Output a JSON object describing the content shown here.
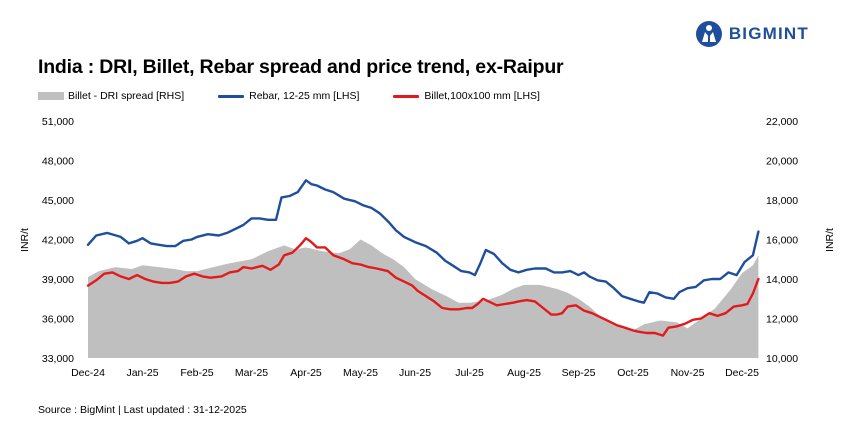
{
  "header": {
    "title": "India : DRI, Billet, Rebar spread and price trend, ex-Raipur",
    "logo_text": "BIGMINT",
    "logo_icon": "bigmint-logo-icon"
  },
  "footer": {
    "source": "Source : BigMint | Last updated : 31-12-2025"
  },
  "colors": {
    "spread": "#bfbfbf",
    "rebar": "#1f4f9c",
    "billet": "#e31a1c",
    "brand": "#1f4f9c"
  },
  "chart_data": {
    "type": "line",
    "title": "India : DRI, Billet, Rebar spread and price trend, ex-Raipur",
    "ylabel": "INR/t",
    "y2label": "INR/t",
    "ylim": [
      33000,
      51000
    ],
    "y2lim": [
      10000,
      22000
    ],
    "yticks": [
      "33,000",
      "36,000",
      "39,000",
      "42,000",
      "45,000",
      "48,000",
      "51,000"
    ],
    "y2ticks": [
      "10,000",
      "12,000",
      "14,000",
      "16,000",
      "18,000",
      "20,000",
      "22,000"
    ],
    "xticks": [
      "Dec-24",
      "Jan-25",
      "Feb-25",
      "Mar-25",
      "Apr-25",
      "May-25",
      "Jun-25",
      "Jul-25",
      "Aug-25",
      "Sep-25",
      "Oct-25",
      "Nov-25",
      "Dec-25"
    ],
    "legend_position": "top",
    "x_index": "months since Dec-24 (0 = Dec-24, 12 = Dec-25)",
    "series": [
      {
        "name": "Billet - DRI spread  [RHS]",
        "type": "area",
        "axis": "right",
        "points": [
          [
            0,
            14100
          ],
          [
            0.2,
            14400
          ],
          [
            0.5,
            14600
          ],
          [
            0.8,
            14500
          ],
          [
            1.0,
            14700
          ],
          [
            1.3,
            14600
          ],
          [
            1.6,
            14500
          ],
          [
            1.8,
            14400
          ],
          [
            2.0,
            14400
          ],
          [
            2.3,
            14600
          ],
          [
            2.6,
            14800
          ],
          [
            2.8,
            14900
          ],
          [
            3.0,
            15000
          ],
          [
            3.3,
            15400
          ],
          [
            3.6,
            15700
          ],
          [
            3.8,
            15500
          ],
          [
            4.0,
            15600
          ],
          [
            4.3,
            15400
          ],
          [
            4.6,
            15300
          ],
          [
            4.8,
            15500
          ],
          [
            5.0,
            16000
          ],
          [
            5.2,
            15700
          ],
          [
            5.4,
            15300
          ],
          [
            5.6,
            15000
          ],
          [
            5.8,
            14600
          ],
          [
            6.0,
            14000
          ],
          [
            6.3,
            13500
          ],
          [
            6.6,
            13100
          ],
          [
            6.8,
            12800
          ],
          [
            7.0,
            12800
          ],
          [
            7.3,
            12900
          ],
          [
            7.6,
            13200
          ],
          [
            7.8,
            13500
          ],
          [
            8.0,
            13700
          ],
          [
            8.3,
            13700
          ],
          [
            8.6,
            13500
          ],
          [
            8.8,
            13300
          ],
          [
            9.0,
            13000
          ],
          [
            9.2,
            12600
          ],
          [
            9.4,
            12100
          ],
          [
            9.6,
            11800
          ],
          [
            9.8,
            11500
          ],
          [
            10.0,
            11400
          ],
          [
            10.2,
            11700
          ],
          [
            10.5,
            11900
          ],
          [
            10.8,
            11800
          ],
          [
            11.0,
            11500
          ],
          [
            11.2,
            11900
          ],
          [
            11.5,
            12500
          ],
          [
            11.8,
            13500
          ],
          [
            12.0,
            14300
          ],
          [
            12.2,
            14700
          ],
          [
            12.3,
            15200
          ]
        ]
      },
      {
        "name": "Rebar, 12-25 mm [LHS]",
        "type": "line",
        "axis": "left",
        "points": [
          [
            0,
            41600
          ],
          [
            0.15,
            42300
          ],
          [
            0.35,
            42500
          ],
          [
            0.6,
            42200
          ],
          [
            0.75,
            41700
          ],
          [
            0.9,
            41900
          ],
          [
            1.0,
            42100
          ],
          [
            1.15,
            41700
          ],
          [
            1.3,
            41600
          ],
          [
            1.45,
            41500
          ],
          [
            1.6,
            41500
          ],
          [
            1.75,
            41900
          ],
          [
            1.9,
            42000
          ],
          [
            2.0,
            42200
          ],
          [
            2.2,
            42400
          ],
          [
            2.4,
            42300
          ],
          [
            2.55,
            42500
          ],
          [
            2.7,
            42800
          ],
          [
            2.85,
            43100
          ],
          [
            3.0,
            43600
          ],
          [
            3.15,
            43600
          ],
          [
            3.3,
            43500
          ],
          [
            3.45,
            43500
          ],
          [
            3.55,
            45200
          ],
          [
            3.7,
            45300
          ],
          [
            3.85,
            45600
          ],
          [
            3.95,
            46200
          ],
          [
            4.0,
            46500
          ],
          [
            4.1,
            46200
          ],
          [
            4.2,
            46100
          ],
          [
            4.35,
            45800
          ],
          [
            4.5,
            45600
          ],
          [
            4.7,
            45100
          ],
          [
            4.9,
            44900
          ],
          [
            5.05,
            44600
          ],
          [
            5.2,
            44400
          ],
          [
            5.35,
            44000
          ],
          [
            5.5,
            43400
          ],
          [
            5.65,
            42700
          ],
          [
            5.8,
            42200
          ],
          [
            6.0,
            41800
          ],
          [
            6.2,
            41500
          ],
          [
            6.4,
            41000
          ],
          [
            6.55,
            40400
          ],
          [
            6.7,
            40000
          ],
          [
            6.85,
            39600
          ],
          [
            7.0,
            39500
          ],
          [
            7.1,
            39300
          ],
          [
            7.2,
            40200
          ],
          [
            7.3,
            41200
          ],
          [
            7.45,
            40900
          ],
          [
            7.6,
            40200
          ],
          [
            7.75,
            39700
          ],
          [
            7.9,
            39500
          ],
          [
            8.05,
            39700
          ],
          [
            8.2,
            39800
          ],
          [
            8.4,
            39800
          ],
          [
            8.55,
            39500
          ],
          [
            8.7,
            39500
          ],
          [
            8.85,
            39600
          ],
          [
            9.0,
            39300
          ],
          [
            9.1,
            39500
          ],
          [
            9.2,
            39200
          ],
          [
            9.35,
            38900
          ],
          [
            9.5,
            38800
          ],
          [
            9.65,
            38300
          ],
          [
            9.8,
            37700
          ],
          [
            9.95,
            37500
          ],
          [
            10.1,
            37300
          ],
          [
            10.2,
            37200
          ],
          [
            10.3,
            38000
          ],
          [
            10.45,
            37900
          ],
          [
            10.6,
            37600
          ],
          [
            10.75,
            37500
          ],
          [
            10.85,
            38000
          ],
          [
            11.0,
            38300
          ],
          [
            11.15,
            38400
          ],
          [
            11.3,
            38900
          ],
          [
            11.45,
            39000
          ],
          [
            11.6,
            39000
          ],
          [
            11.75,
            39500
          ],
          [
            11.9,
            39300
          ],
          [
            12.05,
            40300
          ],
          [
            12.2,
            40800
          ],
          [
            12.3,
            42600
          ]
        ]
      },
      {
        "name": "Billet,100x100 mm [LHS]",
        "type": "line",
        "axis": "left",
        "points": [
          [
            0,
            38500
          ],
          [
            0.15,
            38900
          ],
          [
            0.3,
            39400
          ],
          [
            0.45,
            39500
          ],
          [
            0.6,
            39200
          ],
          [
            0.75,
            39000
          ],
          [
            0.9,
            39300
          ],
          [
            1.05,
            39000
          ],
          [
            1.2,
            38800
          ],
          [
            1.35,
            38700
          ],
          [
            1.5,
            38700
          ],
          [
            1.65,
            38800
          ],
          [
            1.8,
            39200
          ],
          [
            1.95,
            39400
          ],
          [
            2.1,
            39200
          ],
          [
            2.25,
            39100
          ],
          [
            2.45,
            39200
          ],
          [
            2.6,
            39500
          ],
          [
            2.75,
            39600
          ],
          [
            2.85,
            39900
          ],
          [
            3.0,
            39800
          ],
          [
            3.1,
            39900
          ],
          [
            3.2,
            40000
          ],
          [
            3.35,
            39700
          ],
          [
            3.5,
            40100
          ],
          [
            3.6,
            40800
          ],
          [
            3.75,
            41000
          ],
          [
            3.9,
            41600
          ],
          [
            4.0,
            42100
          ],
          [
            4.1,
            41800
          ],
          [
            4.2,
            41400
          ],
          [
            4.35,
            41400
          ],
          [
            4.5,
            40800
          ],
          [
            4.7,
            40500
          ],
          [
            4.85,
            40200
          ],
          [
            5.0,
            40100
          ],
          [
            5.15,
            39900
          ],
          [
            5.3,
            39800
          ],
          [
            5.5,
            39600
          ],
          [
            5.65,
            39100
          ],
          [
            5.8,
            38800
          ],
          [
            5.95,
            38500
          ],
          [
            6.05,
            38100
          ],
          [
            6.2,
            37700
          ],
          [
            6.35,
            37300
          ],
          [
            6.5,
            36800
          ],
          [
            6.65,
            36700
          ],
          [
            6.8,
            36700
          ],
          [
            6.95,
            36800
          ],
          [
            7.05,
            36800
          ],
          [
            7.15,
            37100
          ],
          [
            7.25,
            37500
          ],
          [
            7.35,
            37300
          ],
          [
            7.5,
            37000
          ],
          [
            7.65,
            37100
          ],
          [
            7.8,
            37200
          ],
          [
            7.9,
            37300
          ],
          [
            8.05,
            37400
          ],
          [
            8.2,
            37300
          ],
          [
            8.35,
            36800
          ],
          [
            8.5,
            36300
          ],
          [
            8.6,
            36300
          ],
          [
            8.7,
            36400
          ],
          [
            8.8,
            36900
          ],
          [
            8.95,
            37000
          ],
          [
            9.1,
            36600
          ],
          [
            9.25,
            36400
          ],
          [
            9.4,
            36100
          ],
          [
            9.55,
            35800
          ],
          [
            9.7,
            35500
          ],
          [
            9.85,
            35300
          ],
          [
            10.0,
            35100
          ],
          [
            10.1,
            35000
          ],
          [
            10.25,
            34900
          ],
          [
            10.4,
            34900
          ],
          [
            10.55,
            34700
          ],
          [
            10.65,
            35300
          ],
          [
            10.8,
            35400
          ],
          [
            10.95,
            35600
          ],
          [
            11.1,
            35900
          ],
          [
            11.25,
            36000
          ],
          [
            11.4,
            36400
          ],
          [
            11.55,
            36200
          ],
          [
            11.7,
            36400
          ],
          [
            11.85,
            36900
          ],
          [
            12.0,
            37000
          ],
          [
            12.1,
            37100
          ],
          [
            12.2,
            37900
          ],
          [
            12.3,
            39000
          ]
        ]
      }
    ]
  }
}
